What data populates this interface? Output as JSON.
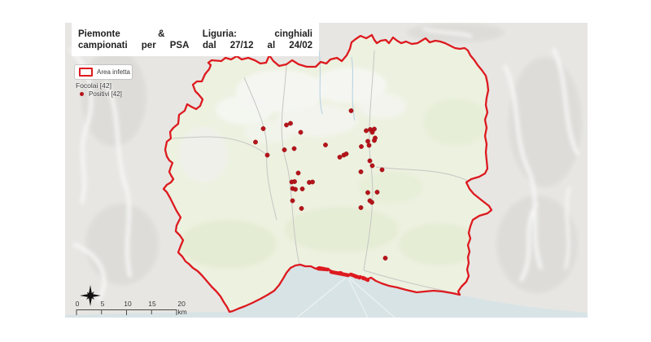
{
  "title": {
    "line1": "Piemonte & Liguria: cinghiali",
    "line2": "campionati per PSA dal 27/12 al 24/02"
  },
  "legend": {
    "area_infetta": "Area infetta",
    "focolai": "Focolai [42]",
    "positivi": "Positivi [42]"
  },
  "scalebar": {
    "labels": [
      "0",
      "5",
      "10",
      "15",
      "20 km"
    ]
  },
  "colors": {
    "boundary": "#dd1a1f",
    "positive": "#b5131a",
    "sea": "#d8e3e6",
    "land_outside": "#e7e6e3",
    "land_inside": "#edf1e0"
  },
  "map": {
    "boundary_points": [
      [
        260,
        74
      ],
      [
        272,
        75
      ],
      [
        277,
        71
      ],
      [
        284,
        73
      ],
      [
        291,
        69
      ],
      [
        297,
        73
      ],
      [
        305,
        71
      ],
      [
        313,
        74
      ],
      [
        320,
        78
      ],
      [
        327,
        77
      ],
      [
        331,
        68
      ],
      [
        336,
        75
      ],
      [
        343,
        81
      ],
      [
        352,
        79
      ],
      [
        359,
        74
      ],
      [
        367,
        79
      ],
      [
        377,
        82
      ],
      [
        388,
        82
      ],
      [
        394,
        76
      ],
      [
        401,
        78
      ],
      [
        406,
        73
      ],
      [
        414,
        71
      ],
      [
        420,
        75
      ],
      [
        426,
        68
      ],
      [
        430,
        60
      ],
      [
        432,
        52
      ],
      [
        437,
        48
      ],
      [
        443,
        44
      ],
      [
        450,
        47
      ],
      [
        457,
        43
      ],
      [
        460,
        49
      ],
      [
        463,
        53
      ],
      [
        468,
        50
      ],
      [
        474,
        49
      ],
      [
        478,
        53
      ],
      [
        483,
        46
      ],
      [
        488,
        50
      ],
      [
        493,
        53
      ],
      [
        499,
        51
      ],
      [
        506,
        54
      ],
      [
        513,
        53
      ],
      [
        518,
        50
      ],
      [
        523,
        47
      ],
      [
        528,
        52
      ],
      [
        535,
        50
      ],
      [
        541,
        51
      ],
      [
        547,
        53
      ],
      [
        553,
        56
      ],
      [
        559,
        59
      ],
      [
        565,
        60
      ],
      [
        571,
        59
      ],
      [
        575,
        62
      ],
      [
        578,
        68
      ],
      [
        583,
        74
      ],
      [
        587,
        80
      ],
      [
        592,
        86
      ],
      [
        597,
        93
      ],
      [
        599,
        102
      ],
      [
        600,
        111
      ],
      [
        598,
        120
      ],
      [
        597,
        129
      ],
      [
        599,
        138
      ],
      [
        596,
        147
      ],
      [
        598,
        157
      ],
      [
        596,
        167
      ],
      [
        598,
        177
      ],
      [
        597,
        187
      ],
      [
        598,
        197
      ],
      [
        599,
        207
      ],
      [
        596,
        213
      ],
      [
        589,
        217
      ],
      [
        579,
        220
      ],
      [
        573,
        224
      ],
      [
        577,
        232
      ],
      [
        582,
        238
      ],
      [
        592,
        246
      ],
      [
        601,
        253
      ],
      [
        604,
        258
      ],
      [
        599,
        262
      ],
      [
        589,
        265
      ],
      [
        581,
        270
      ],
      [
        578,
        278
      ],
      [
        576,
        286
      ],
      [
        578,
        293
      ],
      [
        575,
        301
      ],
      [
        577,
        309
      ],
      [
        575,
        316
      ],
      [
        576,
        323
      ],
      [
        574,
        331
      ],
      [
        576,
        339
      ],
      [
        573,
        346
      ],
      [
        567,
        352
      ],
      [
        563,
        358
      ],
      [
        565,
        362
      ],
      [
        556,
        360
      ],
      [
        544,
        358
      ],
      [
        533,
        357
      ],
      [
        522,
        358
      ],
      [
        512,
        359
      ],
      [
        499,
        356
      ],
      [
        488,
        353
      ],
      [
        478,
        351
      ],
      [
        469,
        348
      ],
      [
        462,
        345
      ],
      [
        456,
        341
      ],
      [
        451,
        343
      ],
      [
        446,
        343
      ],
      [
        443,
        339
      ],
      [
        437,
        341
      ],
      [
        432,
        337
      ],
      [
        426,
        339
      ],
      [
        419,
        334
      ],
      [
        412,
        335
      ],
      [
        406,
        332
      ],
      [
        398,
        329
      ],
      [
        392,
        328
      ],
      [
        388,
        330
      ],
      [
        382,
        327
      ],
      [
        375,
        327
      ],
      [
        369,
        325
      ],
      [
        363,
        326
      ],
      [
        357,
        329
      ],
      [
        352,
        335
      ],
      [
        348,
        342
      ],
      [
        343,
        350
      ],
      [
        337,
        357
      ],
      [
        329,
        362
      ],
      [
        320,
        367
      ],
      [
        310,
        372
      ],
      [
        301,
        376
      ],
      [
        293,
        379
      ],
      [
        286,
        382
      ],
      [
        282,
        383
      ],
      [
        279,
        377
      ],
      [
        275,
        371
      ],
      [
        271,
        364
      ],
      [
        266,
        358
      ],
      [
        260,
        352
      ],
      [
        254,
        345
      ],
      [
        248,
        338
      ],
      [
        243,
        333
      ],
      [
        237,
        329
      ],
      [
        232,
        324
      ],
      [
        228,
        321
      ],
      [
        224,
        315
      ],
      [
        219,
        310
      ],
      [
        222,
        302
      ],
      [
        225,
        295
      ],
      [
        221,
        289
      ],
      [
        216,
        284
      ],
      [
        217,
        277
      ],
      [
        222,
        267
      ],
      [
        217,
        259
      ],
      [
        213,
        251
      ],
      [
        209,
        243
      ],
      [
        205,
        236
      ],
      [
        201,
        232
      ],
      [
        205,
        227
      ],
      [
        210,
        224
      ],
      [
        213,
        220
      ],
      [
        210,
        215
      ],
      [
        208,
        211
      ],
      [
        210,
        205
      ],
      [
        212,
        200
      ],
      [
        208,
        197
      ],
      [
        205,
        192
      ],
      [
        203,
        184
      ],
      [
        205,
        174
      ],
      [
        210,
        170
      ],
      [
        209,
        162
      ],
      [
        213,
        157
      ],
      [
        219,
        152
      ],
      [
        220,
        141
      ],
      [
        227,
        136
      ],
      [
        230,
        128
      ],
      [
        235,
        131
      ],
      [
        241,
        134
      ],
      [
        246,
        130
      ],
      [
        249,
        122
      ],
      [
        244,
        116
      ],
      [
        240,
        112
      ],
      [
        237,
        104
      ],
      [
        242,
        100
      ],
      [
        248,
        100
      ],
      [
        252,
        91
      ],
      [
        257,
        85
      ],
      [
        259,
        80
      ],
      [
        256,
        77
      ]
    ],
    "positive_points": [
      [
        431.5,
        136
      ],
      [
        323.5,
        158
      ],
      [
        314,
        174.5
      ],
      [
        328.5,
        190.5
      ],
      [
        352,
        153.5
      ],
      [
        357,
        151.5
      ],
      [
        369.5,
        162.5
      ],
      [
        361.5,
        182.5
      ],
      [
        349.5,
        184
      ],
      [
        400,
        178
      ],
      [
        417.5,
        193
      ],
      [
        422.5,
        190.5
      ],
      [
        425.5,
        189
      ],
      [
        450,
        160.5
      ],
      [
        455,
        159
      ],
      [
        457.5,
        162.5
      ],
      [
        460,
        158.5
      ],
      [
        461,
        169.5
      ],
      [
        452,
        173.5
      ],
      [
        460,
        172.5
      ],
      [
        444,
        180
      ],
      [
        453.5,
        178.5
      ],
      [
        454.5,
        197.5
      ],
      [
        457.5,
        203.5
      ],
      [
        469.5,
        208.5
      ],
      [
        443.5,
        211
      ],
      [
        366.5,
        212.5
      ],
      [
        358.5,
        223.5
      ],
      [
        362,
        223
      ],
      [
        380,
        224
      ],
      [
        384,
        223.5
      ],
      [
        359.5,
        231.5
      ],
      [
        363,
        232.5
      ],
      [
        371.5,
        232
      ],
      [
        359.5,
        246.5
      ],
      [
        370.5,
        256
      ],
      [
        452,
        236.5
      ],
      [
        463.5,
        236
      ],
      [
        454.5,
        246.5
      ],
      [
        457,
        248.5
      ],
      [
        443.5,
        255
      ],
      [
        473.5,
        317
      ]
    ],
    "port_marks": [
      [
        391,
        330,
        403,
        331
      ],
      [
        407,
        334,
        428,
        338
      ],
      [
        431,
        337,
        442,
        341
      ],
      [
        446,
        341,
        452,
        344
      ]
    ]
  }
}
